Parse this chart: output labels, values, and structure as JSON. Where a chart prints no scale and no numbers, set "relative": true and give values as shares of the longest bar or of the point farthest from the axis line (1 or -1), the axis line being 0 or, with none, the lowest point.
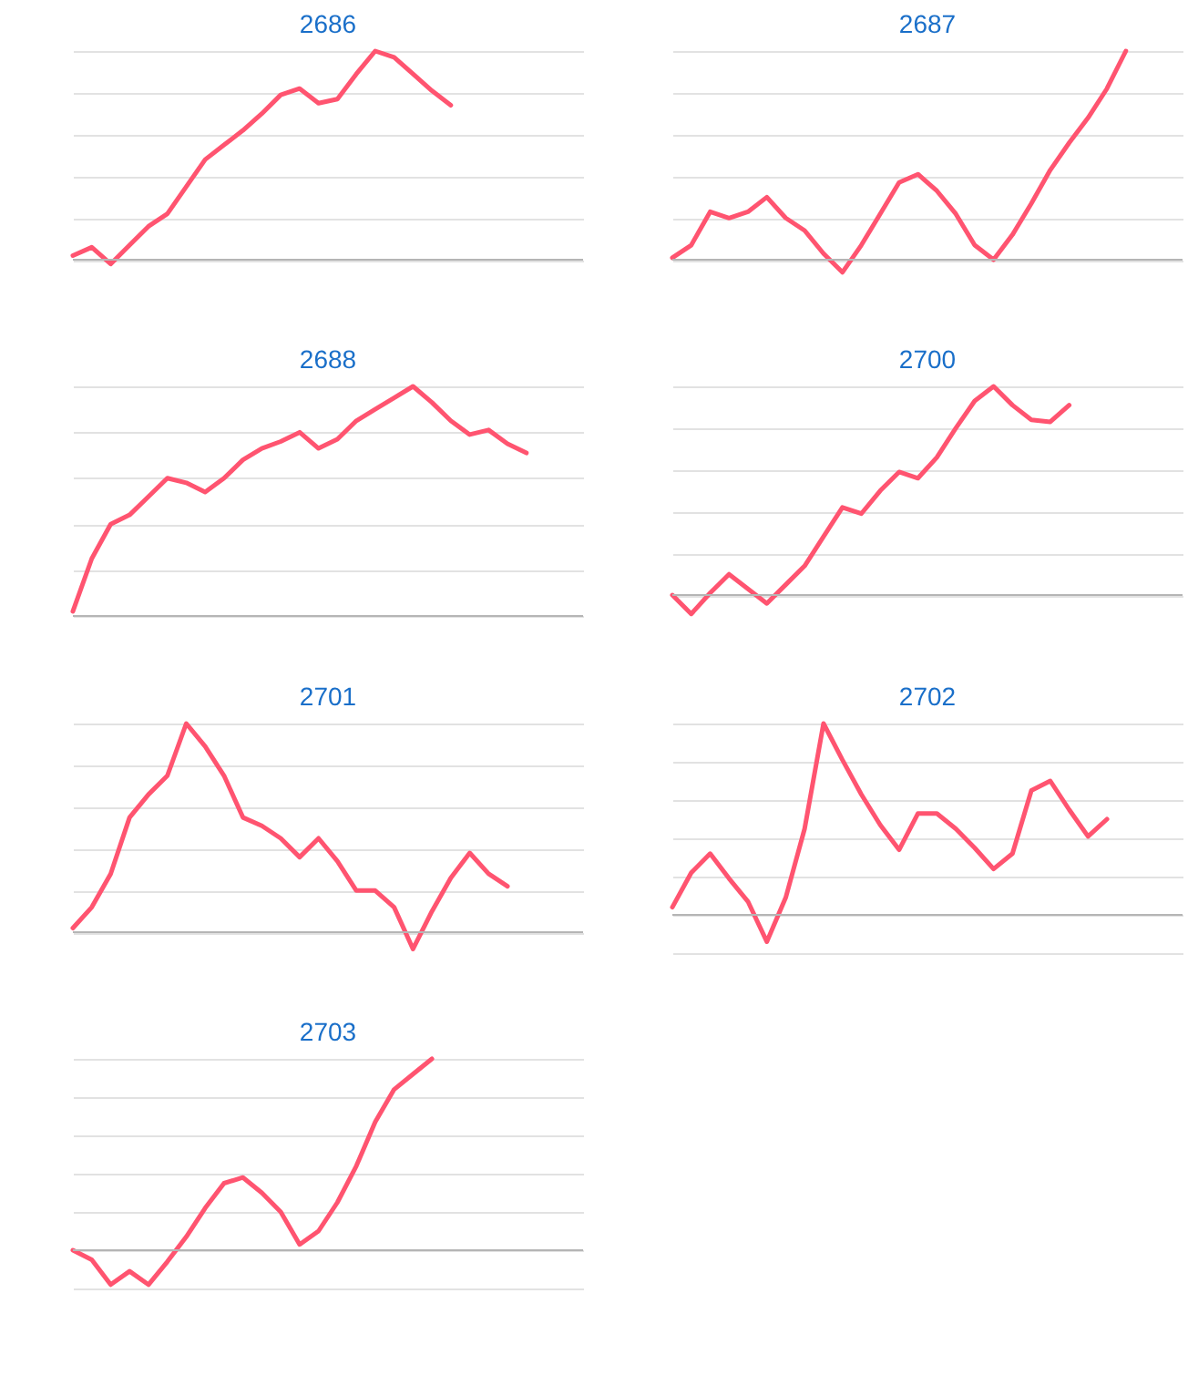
{
  "chart_data": [
    {
      "type": "line",
      "title": "2686",
      "relative": true,
      "grid": "y",
      "categories": [
        null,
        null,
        null,
        null,
        null,
        null,
        null,
        null,
        null,
        null,
        null,
        null,
        null,
        null,
        null,
        null,
        null,
        null,
        null,
        null,
        null,
        null,
        null,
        null,
        null,
        null,
        null,
        null
      ],
      "series": [
        {
          "color": "#ff5470",
          "values": [
            0.02,
            0.06,
            -0.02,
            0.07,
            0.16,
            0.22,
            0.35,
            0.48,
            0.55,
            0.62,
            0.7,
            0.79,
            0.82,
            0.75,
            0.77,
            0.89,
            1.0,
            0.97,
            0.89,
            0.81,
            0.74,
            null,
            null,
            null,
            null,
            null,
            null,
            null
          ]
        }
      ]
    },
    {
      "type": "line",
      "title": "2687",
      "relative": true,
      "grid": "y",
      "categories": [
        null,
        null,
        null,
        null,
        null,
        null,
        null,
        null,
        null,
        null,
        null,
        null,
        null,
        null,
        null,
        null,
        null,
        null,
        null,
        null,
        null,
        null,
        null,
        null,
        null,
        null,
        null,
        null
      ],
      "series": [
        {
          "color": "#ff5470",
          "values": [
            0.01,
            0.07,
            0.23,
            0.2,
            0.23,
            0.3,
            0.2,
            0.14,
            0.03,
            -0.06,
            0.07,
            0.22,
            0.37,
            0.41,
            0.33,
            0.22,
            0.07,
            0.0,
            0.12,
            0.27,
            0.43,
            0.56,
            0.68,
            0.82,
            1.0,
            null,
            null,
            null
          ]
        }
      ]
    },
    {
      "type": "line",
      "title": "2688",
      "relative": true,
      "grid": "y",
      "categories": [
        null,
        null,
        null,
        null,
        null,
        null,
        null,
        null,
        null,
        null,
        null,
        null,
        null,
        null,
        null,
        null,
        null,
        null,
        null,
        null,
        null,
        null,
        null,
        null,
        null,
        null,
        null,
        null
      ],
      "series": [
        {
          "color": "#ff5470",
          "values": [
            0.02,
            0.25,
            0.4,
            0.44,
            0.52,
            0.6,
            0.58,
            0.54,
            0.6,
            0.68,
            0.73,
            0.76,
            0.8,
            0.73,
            0.77,
            0.85,
            0.9,
            0.95,
            1.0,
            0.93,
            0.85,
            0.79,
            0.81,
            0.75,
            0.71,
            null,
            null,
            null
          ]
        }
      ]
    },
    {
      "type": "line",
      "title": "2700",
      "relative": true,
      "grid": "y",
      "categories": [
        null,
        null,
        null,
        null,
        null,
        null,
        null,
        null,
        null,
        null,
        null,
        null,
        null,
        null,
        null,
        null,
        null,
        null,
        null,
        null,
        null,
        null,
        null,
        null,
        null,
        null,
        null,
        null
      ],
      "series": [
        {
          "color": "#ff5470",
          "values": [
            0.0,
            -0.09,
            0.01,
            0.1,
            0.03,
            -0.04,
            0.05,
            0.14,
            0.28,
            0.42,
            0.39,
            0.5,
            0.59,
            0.56,
            0.66,
            0.8,
            0.93,
            1.0,
            0.91,
            0.84,
            0.83,
            0.91,
            null,
            null,
            null,
            null,
            null,
            null
          ]
        }
      ]
    },
    {
      "type": "line",
      "title": "2701",
      "relative": true,
      "grid": "y",
      "categories": [
        null,
        null,
        null,
        null,
        null,
        null,
        null,
        null,
        null,
        null,
        null,
        null,
        null,
        null,
        null,
        null,
        null,
        null,
        null,
        null,
        null,
        null,
        null,
        null,
        null,
        null,
        null,
        null
      ],
      "series": [
        {
          "color": "#ff5470",
          "values": [
            0.02,
            0.12,
            0.28,
            0.55,
            0.66,
            0.75,
            1.0,
            0.89,
            0.75,
            0.55,
            0.51,
            0.45,
            0.36,
            0.45,
            0.34,
            0.2,
            0.2,
            0.12,
            -0.08,
            0.1,
            0.26,
            0.38,
            0.28,
            0.22,
            null,
            null,
            null,
            null
          ]
        }
      ]
    },
    {
      "type": "line",
      "title": "2702",
      "relative": true,
      "grid": "y",
      "categories": [
        null,
        null,
        null,
        null,
        null,
        null,
        null,
        null,
        null,
        null,
        null,
        null,
        null,
        null,
        null,
        null,
        null,
        null,
        null,
        null,
        null,
        null,
        null,
        null,
        null,
        null,
        null,
        null
      ],
      "series": [
        {
          "color": "#ff5470",
          "values": [
            0.04,
            0.22,
            0.32,
            0.19,
            0.07,
            -0.14,
            0.09,
            0.45,
            1.0,
            0.81,
            0.63,
            0.47,
            0.34,
            0.53,
            0.53,
            0.45,
            0.35,
            0.24,
            0.32,
            0.65,
            0.7,
            0.55,
            0.41,
            0.5,
            null,
            null,
            null,
            null
          ]
        }
      ]
    },
    {
      "type": "line",
      "title": "2703",
      "relative": true,
      "grid": "y",
      "categories": [
        null,
        null,
        null,
        null,
        null,
        null,
        null,
        null,
        null,
        null,
        null,
        null,
        null,
        null,
        null,
        null,
        null,
        null,
        null,
        null,
        null,
        null,
        null,
        null,
        null,
        null,
        null,
        null
      ],
      "series": [
        {
          "color": "#ff5470",
          "values": [
            0.0,
            -0.05,
            -0.18,
            -0.11,
            -0.18,
            -0.06,
            0.07,
            0.22,
            0.35,
            0.38,
            0.3,
            0.2,
            0.03,
            0.1,
            0.25,
            0.44,
            0.67,
            0.84,
            0.92,
            1.0,
            null,
            null,
            null,
            null,
            null,
            null,
            null,
            null
          ]
        }
      ]
    }
  ]
}
